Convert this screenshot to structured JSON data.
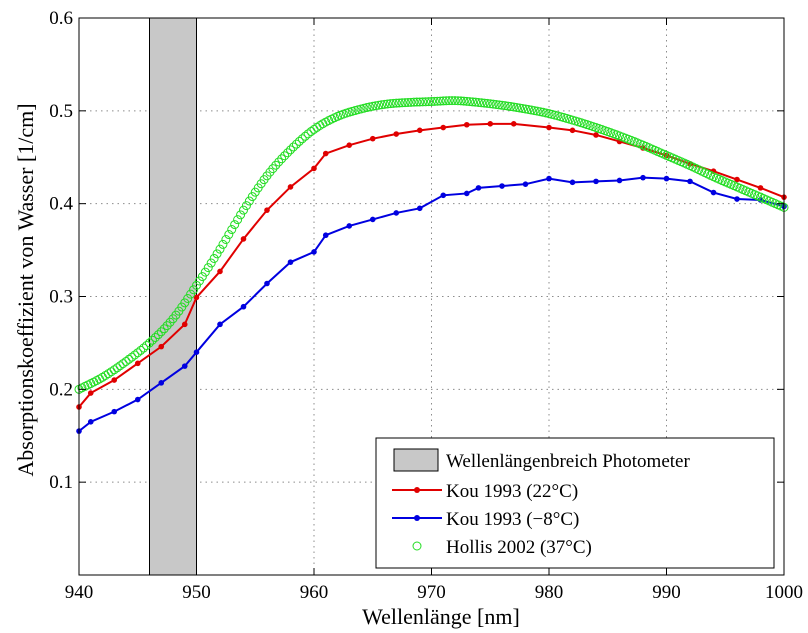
{
  "chart_data": {
    "type": "line",
    "xlabel": "Wellenlänge [nm]",
    "ylabel": "Absorptionskoeffizient von Wasser [1/cm]",
    "xlim": [
      940,
      1000
    ],
    "ylim": [
      0,
      0.6
    ],
    "xticks": [
      940,
      950,
      960,
      970,
      980,
      990,
      1000
    ],
    "xtick_labels": [
      "940",
      "950",
      "960",
      "970",
      "980",
      "990",
      "1000"
    ],
    "yticks": [
      0.1,
      0.2,
      0.3,
      0.4,
      0.5,
      0.6
    ],
    "ytick_labels": [
      "0.1",
      "0.2",
      "0.3",
      "0.4",
      "0.5",
      "0.6"
    ],
    "grid": true,
    "legend_position": "bottom-right",
    "shaded_region": {
      "name": "Wellenlängenbreich Photometer",
      "x_start": 946,
      "x_end": 950,
      "color": "#c8c8c8"
    },
    "series": [
      {
        "name": "Kou 1993 (22°C)",
        "color": "#e00000",
        "marker": "dot",
        "x": [
          940,
          941,
          943,
          945,
          947,
          949,
          950,
          952,
          954,
          956,
          958,
          960,
          961,
          963,
          965,
          967,
          969,
          971,
          973,
          975,
          977,
          980,
          982,
          984,
          986,
          988,
          990,
          992,
          994,
          996,
          998,
          1000
        ],
        "y": [
          0.181,
          0.196,
          0.21,
          0.228,
          0.246,
          0.27,
          0.299,
          0.327,
          0.362,
          0.393,
          0.418,
          0.438,
          0.454,
          0.463,
          0.47,
          0.475,
          0.479,
          0.482,
          0.485,
          0.486,
          0.486,
          0.482,
          0.479,
          0.474,
          0.467,
          0.46,
          0.452,
          0.443,
          0.435,
          0.426,
          0.417,
          0.407
        ]
      },
      {
        "name": "Kou 1993 (−8°C)",
        "color": "#0000e0",
        "marker": "dot",
        "x": [
          940,
          941,
          943,
          945,
          947,
          949,
          950,
          952,
          954,
          956,
          958,
          960,
          961,
          963,
          965,
          967,
          969,
          971,
          973,
          974,
          976,
          978,
          980,
          982,
          984,
          986,
          988,
          990,
          992,
          994,
          996,
          998,
          1000
        ],
        "y": [
          0.155,
          0.165,
          0.176,
          0.189,
          0.207,
          0.225,
          0.24,
          0.27,
          0.289,
          0.314,
          0.337,
          0.348,
          0.366,
          0.376,
          0.383,
          0.39,
          0.395,
          0.409,
          0.411,
          0.417,
          0.419,
          0.421,
          0.427,
          0.423,
          0.424,
          0.425,
          0.428,
          0.427,
          0.424,
          0.412,
          0.405,
          0.404,
          0.397
        ]
      },
      {
        "name": "Hollis 2002 (37°C)",
        "color": "#22dd22",
        "marker": "circle",
        "x_start": 940,
        "x_end": 1000,
        "x_step": 0.25,
        "anchors_x": [
          940,
          942,
          944,
          946,
          948,
          950,
          952,
          954,
          956,
          958,
          960,
          962,
          964,
          966,
          968,
          970,
          972,
          974,
          976,
          978,
          980,
          982,
          984,
          986,
          988,
          990,
          992,
          994,
          996,
          998,
          1000
        ],
        "anchors_y": [
          0.2,
          0.213,
          0.23,
          0.25,
          0.276,
          0.312,
          0.351,
          0.393,
          0.43,
          0.458,
          0.48,
          0.494,
          0.502,
          0.507,
          0.509,
          0.51,
          0.511,
          0.509,
          0.506,
          0.502,
          0.497,
          0.49,
          0.482,
          0.473,
          0.463,
          0.452,
          0.441,
          0.429,
          0.418,
          0.407,
          0.396
        ]
      }
    ]
  }
}
